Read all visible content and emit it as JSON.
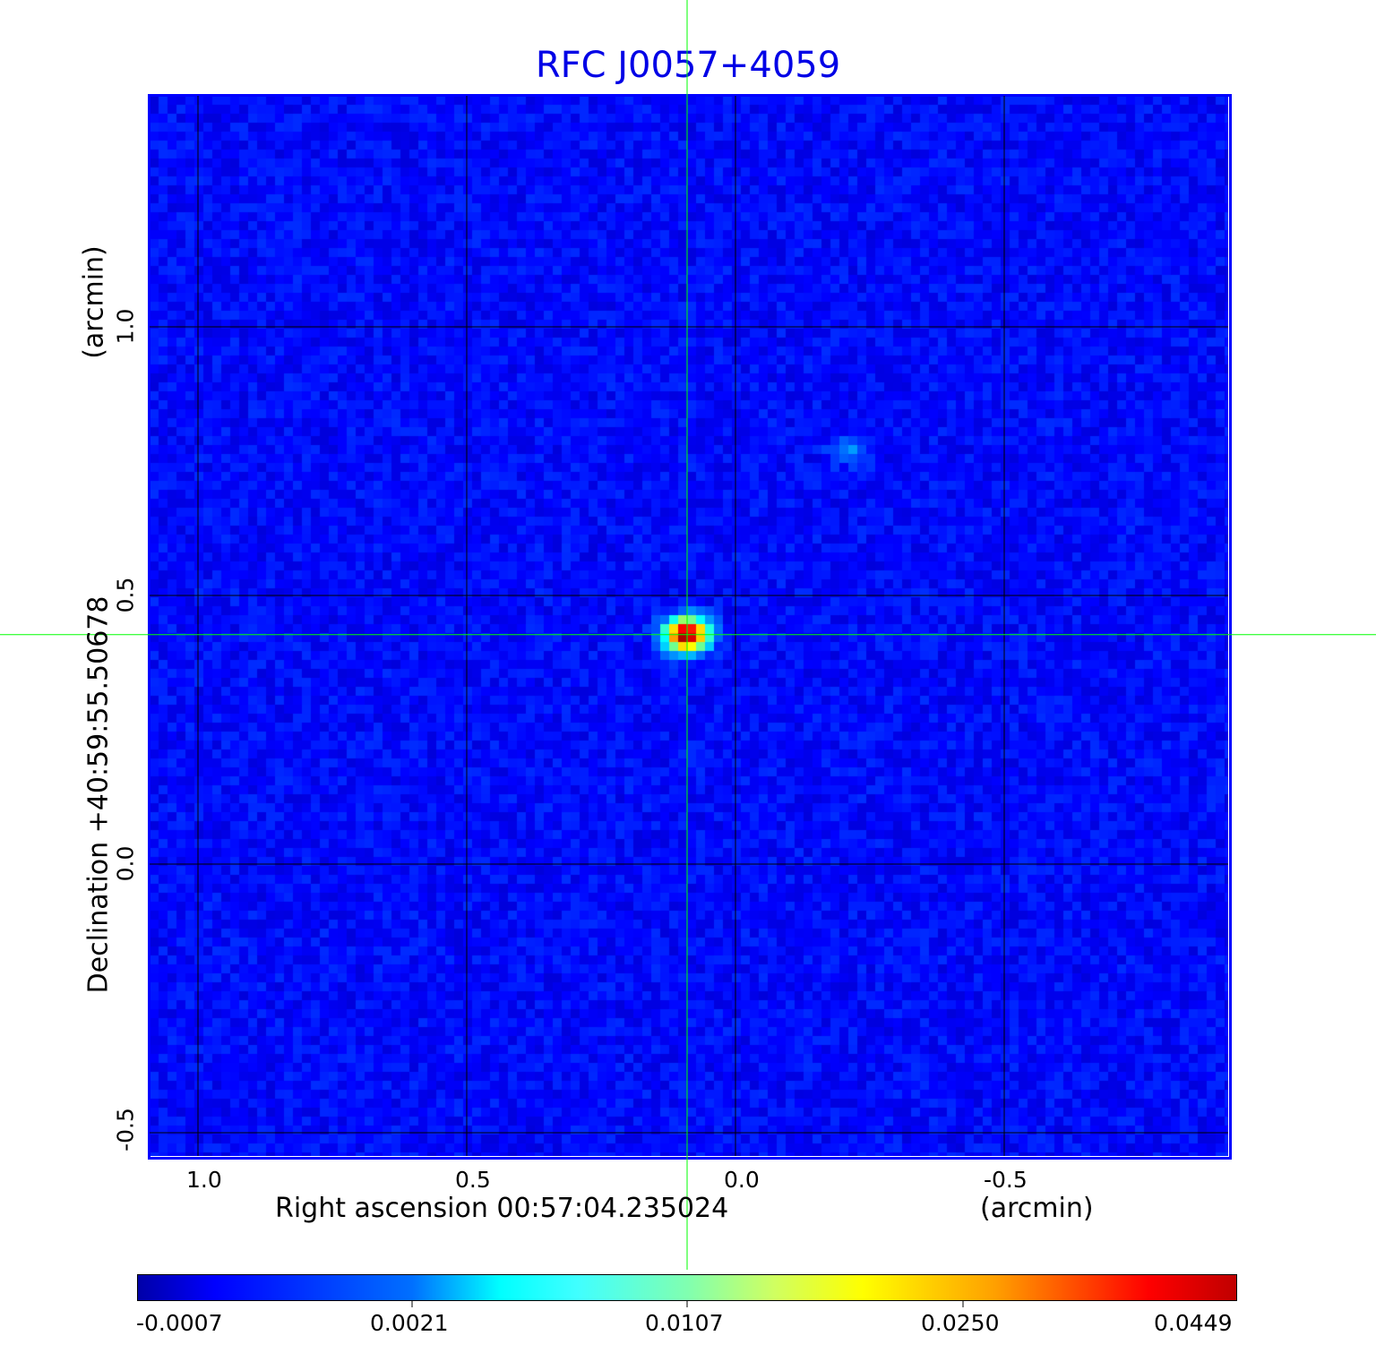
{
  "chart_data": {
    "type": "heatmap",
    "title": "RFC J0057+4059",
    "xlabel": "Right ascension  00:57:04.235024",
    "xunit": "(arcmin)",
    "ylabel": "Declination  +40:59:55.50678",
    "yunit": "(arcmin)",
    "xlim": [
      1.09,
      -0.92
    ],
    "ylim": [
      -0.54,
      1.43
    ],
    "x_ticks": [
      "1.0",
      "0.5",
      "0.0",
      "-0.5"
    ],
    "x_tick_values": [
      1.0,
      0.5,
      0.0,
      -0.5
    ],
    "y_ticks": [
      "1.0",
      "0.5",
      "0.0",
      "-0.5"
    ],
    "y_tick_values": [
      1.0,
      0.5,
      0.0,
      -0.5
    ],
    "grid": true,
    "colormap": "jet",
    "colorbar": {
      "ticks": [
        "-0.0007",
        "0.0021",
        "0.0107",
        "0.0250",
        "0.0449"
      ],
      "placement": "bottom"
    },
    "sources": [
      {
        "x": 0.09,
        "y": 0.427,
        "peak": 0.0449
      },
      {
        "x": -0.21,
        "y": 0.767,
        "peak": 0.004
      }
    ],
    "crosshair": {
      "x": 0.09,
      "y": 0.427,
      "color": "#00ff00"
    },
    "frame_color": "#0000ff",
    "title_color": "#0000e6"
  }
}
